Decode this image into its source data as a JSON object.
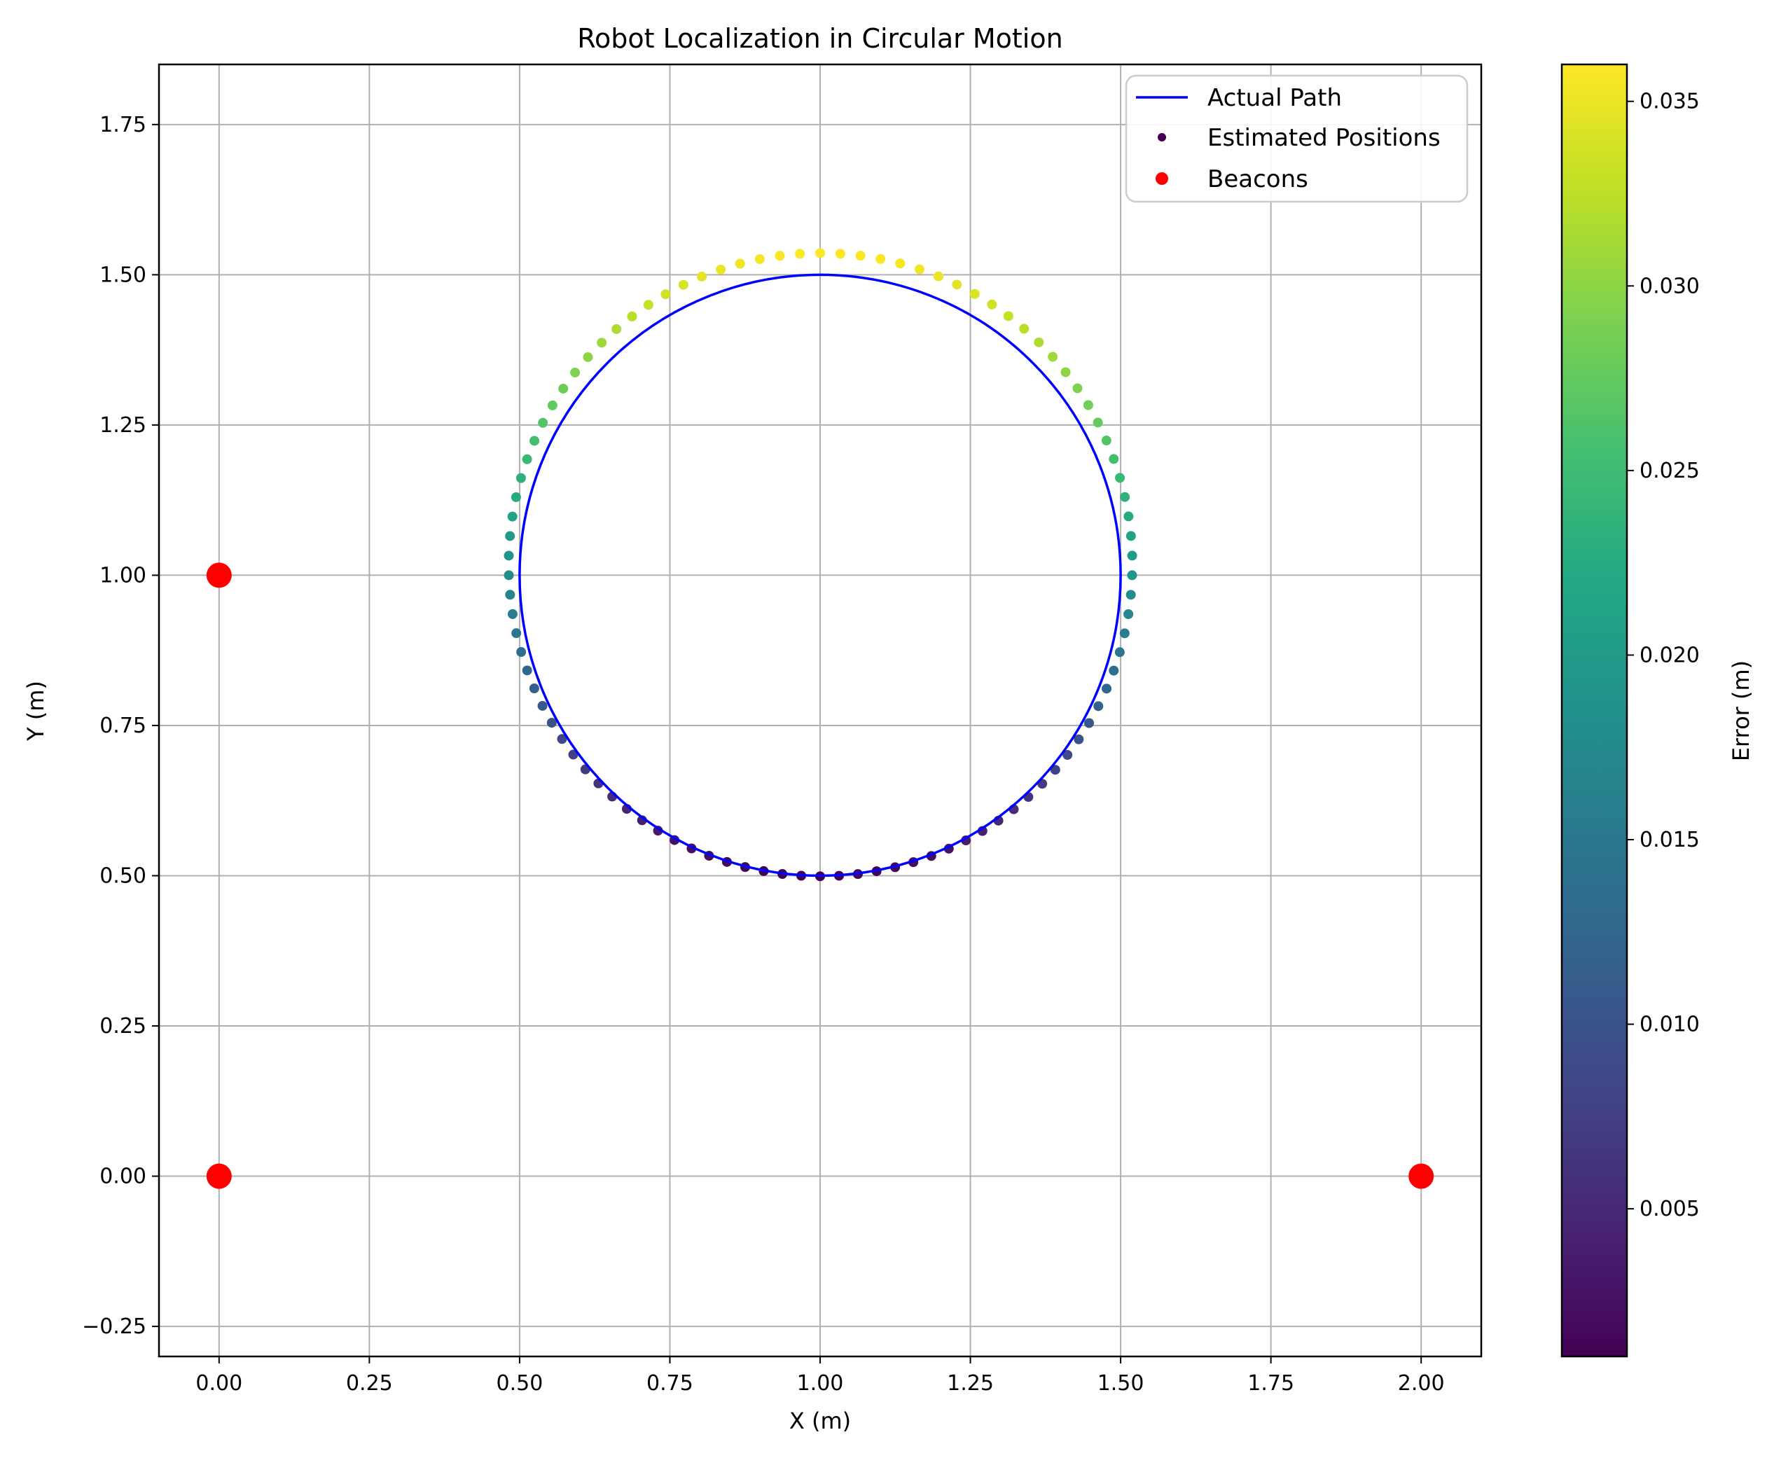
{
  "chart_data": {
    "type": "scatter",
    "title": "Robot Localization in Circular Motion",
    "xlabel": "X (m)",
    "ylabel": "Y (m)",
    "xlim": [
      -0.1,
      2.1
    ],
    "ylim": [
      -0.3,
      1.85
    ],
    "xticks": [
      0.0,
      0.25,
      0.5,
      0.75,
      1.0,
      1.25,
      1.5,
      1.75,
      2.0
    ],
    "xtick_labels": [
      "0.00",
      "0.25",
      "0.50",
      "0.75",
      "1.00",
      "1.25",
      "1.50",
      "1.75",
      "2.00"
    ],
    "yticks": [
      -0.25,
      0.0,
      0.25,
      0.5,
      0.75,
      1.0,
      1.25,
      1.5,
      1.75
    ],
    "ytick_labels": [
      "−0.25",
      "0.00",
      "0.25",
      "0.50",
      "0.75",
      "1.00",
      "1.25",
      "1.50",
      "1.75"
    ],
    "grid": true,
    "legend": {
      "placement": "upper-right",
      "entries": [
        "Actual Path",
        "Estimated Positions",
        "Beacons"
      ]
    },
    "actual_path": {
      "name": "Actual Path",
      "shape": "circle",
      "center": [
        1.0,
        1.0
      ],
      "radius": 0.5,
      "color": "#0000ff"
    },
    "estimated_positions": {
      "name": "Estimated Positions",
      "colormap": "viridis",
      "angles_deg_step": 3.6,
      "error_model": {
        "base": 0.0185,
        "amplitude": 0.0175,
        "peak_angle_deg": 88
      },
      "color_reference": "#440154"
    },
    "beacons": {
      "name": "Beacons",
      "color": "#ff0000",
      "points": [
        [
          0.0,
          0.0
        ],
        [
          2.0,
          0.0
        ],
        [
          0.0,
          1.0
        ]
      ]
    },
    "colorbar": {
      "label": "Error (m)",
      "range": [
        0.001,
        0.036
      ],
      "ticks": [
        0.005,
        0.01,
        0.015,
        0.02,
        0.025,
        0.03,
        0.035
      ],
      "tick_labels": [
        "0.005",
        "0.010",
        "0.015",
        "0.020",
        "0.025",
        "0.030",
        "0.035"
      ]
    }
  }
}
